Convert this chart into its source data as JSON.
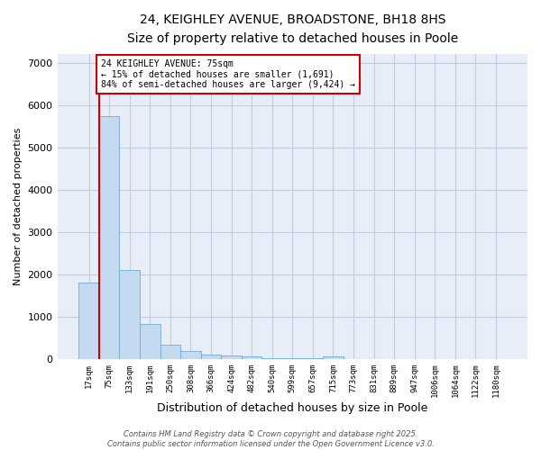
{
  "title1": "24, KEIGHLEY AVENUE, BROADSTONE, BH18 8HS",
  "title2": "Size of property relative to detached houses in Poole",
  "xlabel": "Distribution of detached houses by size in Poole",
  "ylabel": "Number of detached properties",
  "categories": [
    "17sqm",
    "75sqm",
    "133sqm",
    "191sqm",
    "250sqm",
    "308sqm",
    "366sqm",
    "424sqm",
    "482sqm",
    "540sqm",
    "599sqm",
    "657sqm",
    "715sqm",
    "773sqm",
    "831sqm",
    "889sqm",
    "947sqm",
    "1006sqm",
    "1064sqm",
    "1122sqm",
    "1180sqm"
  ],
  "values": [
    1800,
    5750,
    2100,
    820,
    340,
    190,
    110,
    80,
    55,
    30,
    20,
    20,
    70,
    4,
    3,
    2,
    2,
    1,
    1,
    1,
    0
  ],
  "bar_color": "#c5d9f1",
  "bar_edge_color": "#6baed6",
  "vline_x_index": 1,
  "vline_color": "#cc0000",
  "annotation_text": "24 KEIGHLEY AVENUE: 75sqm\n← 15% of detached houses are smaller (1,691)\n84% of semi-detached houses are larger (9,424) →",
  "annotation_box_color": "#ffffff",
  "annotation_box_edge": "#cc0000",
  "ylim": [
    0,
    7200
  ],
  "yticks": [
    0,
    1000,
    2000,
    3000,
    4000,
    5000,
    6000,
    7000
  ],
  "background_color": "#e8eef8",
  "footer_line1": "Contains HM Land Registry data © Crown copyright and database right 2025.",
  "footer_line2": "Contains public sector information licensed under the Open Government Licence v3.0."
}
